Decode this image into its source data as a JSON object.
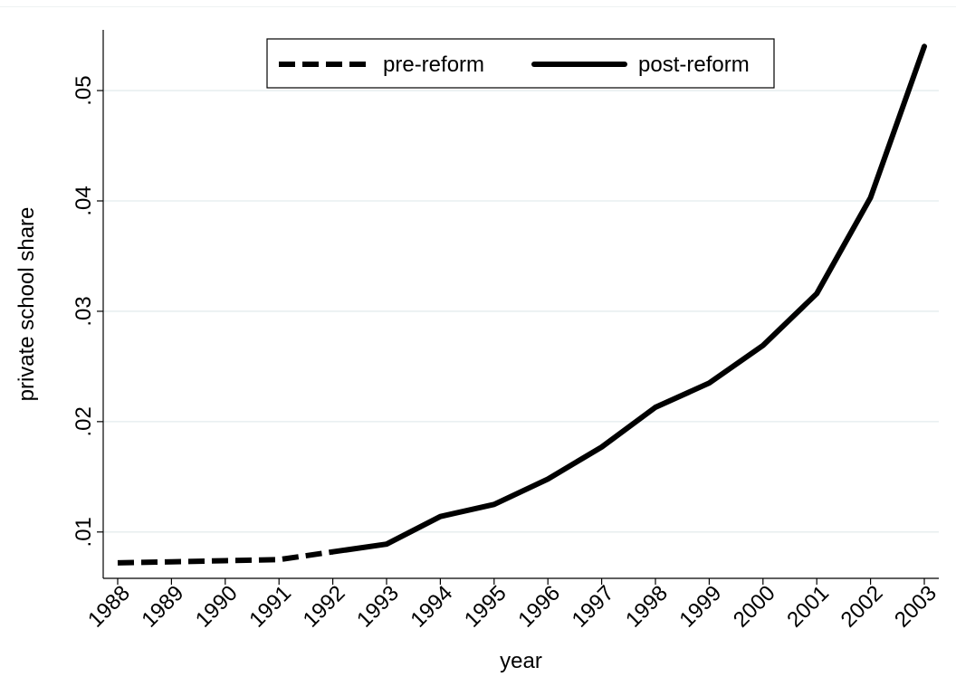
{
  "chart_data": {
    "type": "line",
    "xlabel": "year",
    "ylabel": "private school share",
    "x": [
      1988,
      1989,
      1990,
      1991,
      1992,
      1993,
      1994,
      1995,
      1996,
      1997,
      1998,
      1999,
      2000,
      2001,
      2002,
      2003
    ],
    "x_tick_labels": [
      "1988",
      "1989",
      "1990",
      "1991",
      "1992",
      "1993",
      "1994",
      "1995",
      "1996",
      "1997",
      "1998",
      "1999",
      "2000",
      "2001",
      "2002",
      "2003"
    ],
    "y_ticks": [
      0.01,
      0.02,
      0.03,
      0.04,
      0.05
    ],
    "y_tick_labels": [
      ".01",
      ".02",
      ".03",
      ".04",
      ".05"
    ],
    "ylim": [
      0.0058,
      0.0555
    ],
    "xlim": [
      1988,
      2003
    ],
    "grid": true,
    "legend_position": "top-center",
    "series": [
      {
        "name": "pre-reform",
        "style": "dashed",
        "color": "#000000",
        "x": [
          1988,
          1989,
          1990,
          1991,
          1992
        ],
        "values": [
          0.0072,
          0.0073,
          0.0074,
          0.0075,
          0.0082
        ]
      },
      {
        "name": "post-reform",
        "style": "solid",
        "color": "#000000",
        "x": [
          1992,
          1993,
          1994,
          1995,
          1996,
          1997,
          1998,
          1999,
          2000,
          2001,
          2002,
          2003
        ],
        "values": [
          0.0082,
          0.0089,
          0.0114,
          0.0125,
          0.0148,
          0.0177,
          0.0213,
          0.0235,
          0.0269,
          0.0316,
          0.0403,
          0.054
        ]
      }
    ],
    "colors": {
      "grid": "#e4ecee",
      "axis": "#000000",
      "line": "#000000"
    }
  }
}
